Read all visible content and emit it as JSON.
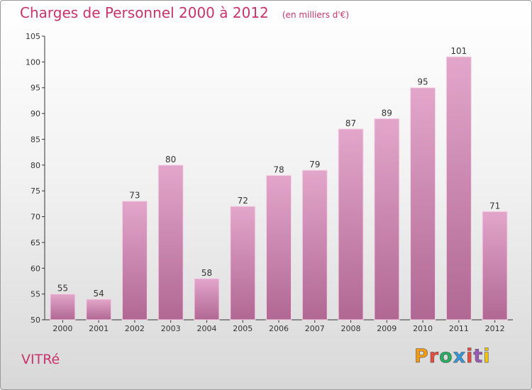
{
  "header": {
    "title": "Charges de Personnel 2000 à 2012",
    "subtitle": "(en milliers d'€)"
  },
  "footer": {
    "commune": "VITRé",
    "brand": "Proxiti"
  },
  "colors": {
    "accent": "#c8336a",
    "bar_top": "#e3a6cb",
    "bar_bottom": "#b06893",
    "brand_letters": [
      "#f39c12",
      "#e74c3c",
      "#27ae60",
      "#3498db",
      "#e74c3c",
      "#9b59b6",
      "#f1c40f"
    ]
  },
  "chart_data": {
    "type": "bar",
    "title": "Charges de Personnel 2000 à 2012",
    "subtitle": "(en milliers d'€)",
    "xlabel": "",
    "ylabel": "",
    "categories": [
      "2000",
      "2001",
      "2002",
      "2003",
      "2004",
      "2005",
      "2006",
      "2007",
      "2008",
      "2009",
      "2010",
      "2011",
      "2012"
    ],
    "values": [
      55,
      54,
      73,
      80,
      58,
      72,
      78,
      79,
      87,
      89,
      95,
      101,
      71
    ],
    "ylim": [
      50,
      105
    ],
    "yticks": [
      50,
      55,
      60,
      65,
      70,
      75,
      80,
      85,
      90,
      95,
      100,
      105
    ],
    "grid": false,
    "data_labels": true
  }
}
